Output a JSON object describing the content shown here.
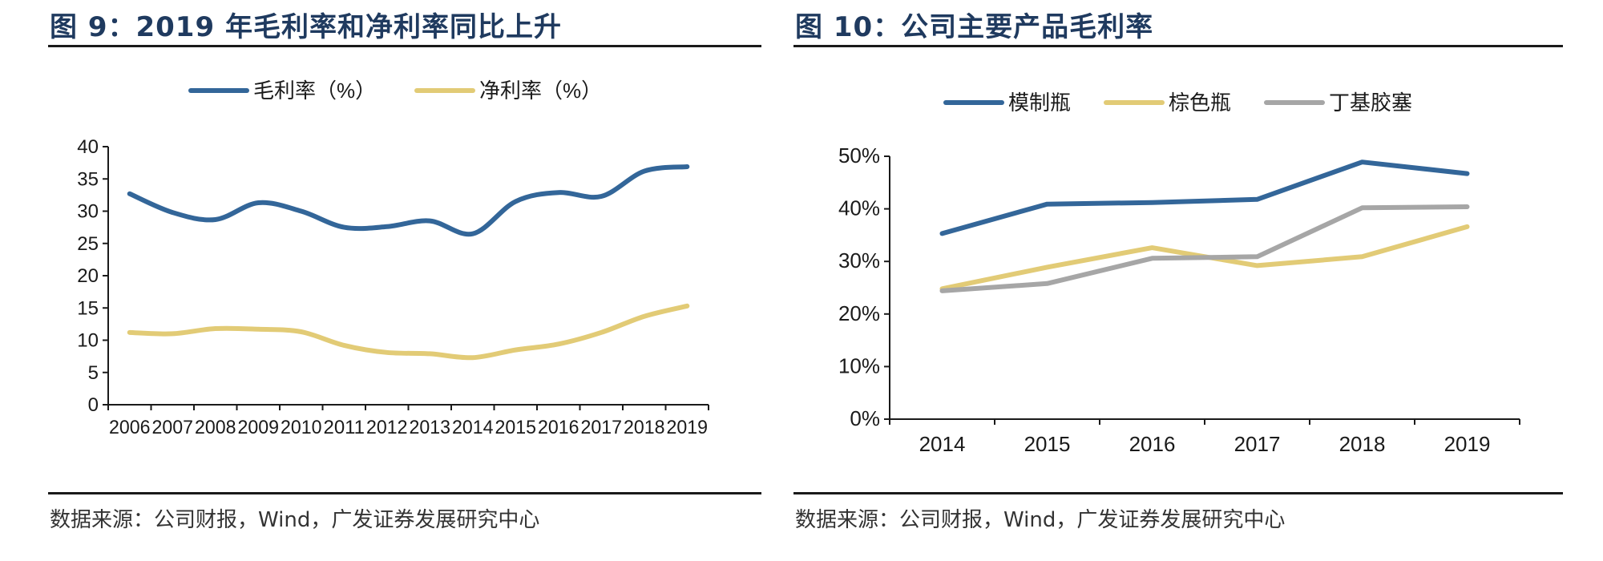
{
  "left": {
    "title": "图 9：2019 年毛利率和净利率同比上升",
    "source": "数据来源：公司财报，Wind，广发证券发展研究中心"
  },
  "right": {
    "title": "图 10：公司主要产品毛利率",
    "source": "数据来源：公司财报，Wind，广发证券发展研究中心"
  },
  "chart_data": [
    {
      "type": "line",
      "title": "图 9：2019 年毛利率和净利率同比上升",
      "xlabel": "",
      "ylabel": "",
      "x": [
        "2006",
        "2007",
        "2008",
        "2009",
        "2010",
        "2011",
        "2012",
        "2013",
        "2014",
        "2015",
        "2016",
        "2017",
        "2018",
        "2019"
      ],
      "ylim": [
        0,
        40
      ],
      "yticks": [
        0,
        5,
        10,
        15,
        20,
        25,
        30,
        35,
        40
      ],
      "ytick_labels": [
        "0",
        "5",
        "10",
        "15",
        "20",
        "25",
        "30",
        "35",
        "40"
      ],
      "grid": false,
      "smooth": true,
      "legend_position": "top",
      "series": [
        {
          "name": "毛利率（%）",
          "color": "#336699",
          "values": [
            32.7,
            29.8,
            28.7,
            31.3,
            30.0,
            27.5,
            27.6,
            28.5,
            26.5,
            31.5,
            32.9,
            32.3,
            36.2,
            36.9
          ]
        },
        {
          "name": "净利率（%）",
          "color": "#E2CB76",
          "values": [
            11.2,
            11.0,
            11.8,
            11.7,
            11.3,
            9.2,
            8.1,
            7.9,
            7.3,
            8.5,
            9.4,
            11.2,
            13.7,
            15.3
          ]
        }
      ]
    },
    {
      "type": "line",
      "title": "图 10：公司主要产品毛利率",
      "xlabel": "",
      "ylabel": "",
      "x": [
        "2014",
        "2015",
        "2016",
        "2017",
        "2018",
        "2019"
      ],
      "ylim": [
        0,
        50
      ],
      "yticks": [
        0,
        10,
        20,
        30,
        40,
        50
      ],
      "ytick_labels": [
        "0%",
        "10%",
        "20%",
        "30%",
        "40%",
        "50%"
      ],
      "grid": false,
      "smooth": false,
      "legend_position": "top",
      "series": [
        {
          "name": "模制瓶",
          "color": "#336699",
          "values": [
            35.3,
            40.9,
            41.2,
            41.8,
            48.9,
            46.7
          ]
        },
        {
          "name": "棕色瓶",
          "color": "#E2CB76",
          "values": [
            24.8,
            28.9,
            32.6,
            29.2,
            30.9,
            36.6
          ]
        },
        {
          "name": "丁基胶塞",
          "color": "#A6A6A6",
          "values": [
            24.4,
            25.8,
            30.6,
            30.9,
            40.2,
            40.4
          ]
        }
      ]
    }
  ]
}
